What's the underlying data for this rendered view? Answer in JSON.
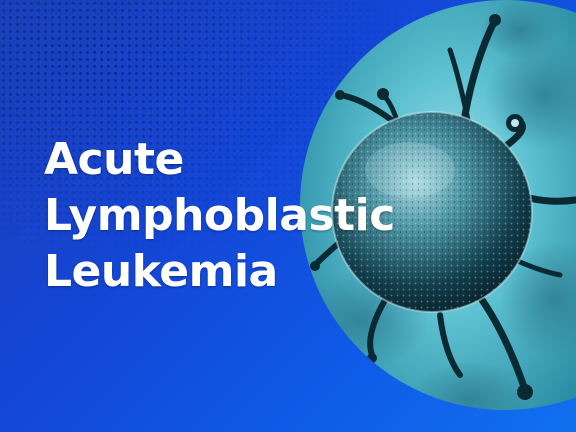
{
  "banner": {
    "title_lines": [
      "Acute",
      "Lymphoblastic",
      "Leukemia"
    ],
    "image": "virus-cell-illustration",
    "colors": {
      "background": "#1446d6",
      "accent_teal": "#4fb9c8",
      "text": "#ffffff"
    }
  }
}
